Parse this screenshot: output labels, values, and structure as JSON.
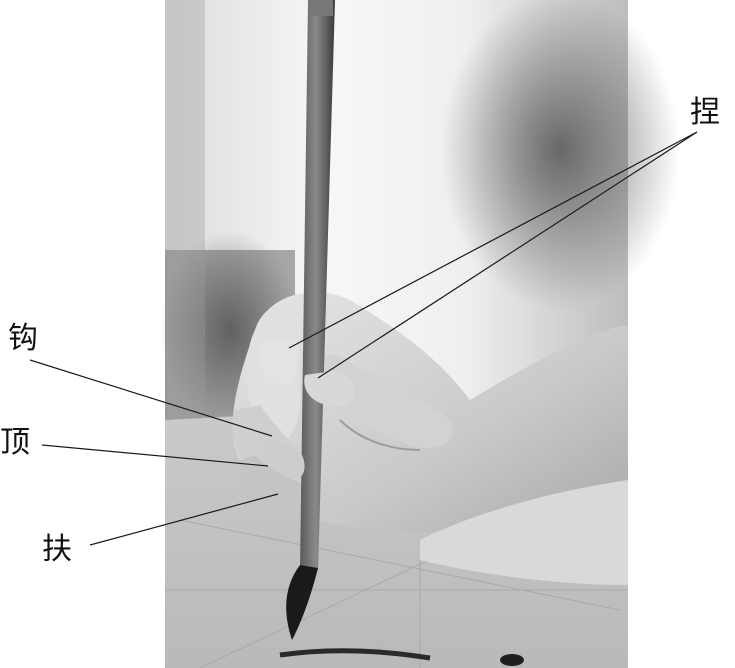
{
  "figure": {
    "subject": "brush-grip",
    "labels": {
      "nie": "捏",
      "gou": "钩",
      "ding": "顶",
      "fu": "扶"
    },
    "colors": {
      "ink": "#111111",
      "skin": "#cfcfcf",
      "paper": "#d6d6d6",
      "background": "#f4f4f4"
    }
  }
}
